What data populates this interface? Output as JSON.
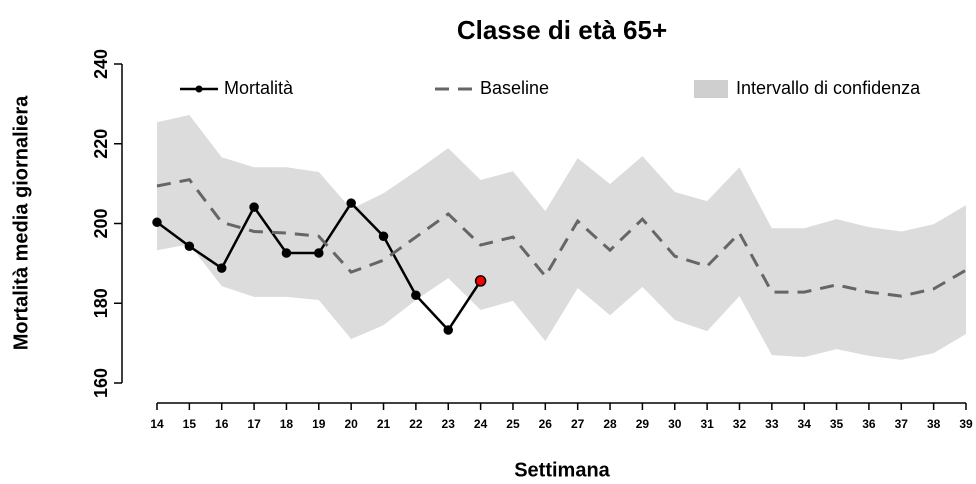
{
  "chart_data": {
    "type": "line",
    "title": "Classe di età 65+",
    "x_label": "Settimana",
    "y_label": "Mortalità media giornaliera",
    "x": [
      14,
      15,
      16,
      17,
      18,
      19,
      20,
      21,
      22,
      23,
      24,
      25,
      26,
      27,
      28,
      29,
      30,
      31,
      32,
      33,
      34,
      35,
      36,
      37,
      38,
      39
    ],
    "xlim": [
      14,
      39
    ],
    "xticks": [
      14,
      15,
      16,
      17,
      18,
      19,
      20,
      21,
      22,
      23,
      24,
      25,
      26,
      27,
      28,
      29,
      30,
      31,
      32,
      33,
      34,
      35,
      36,
      37,
      38,
      39
    ],
    "ylim": [
      160,
      240
    ],
    "yticks": [
      160,
      180,
      200,
      220,
      240
    ],
    "legend": "top",
    "band": {
      "name": "Intervallo di confidenza",
      "color": "#dcdcdc",
      "upper": [
        225.4,
        227.2,
        216.6,
        214.1,
        214.1,
        212.9,
        203.6,
        207.6,
        213.1,
        218.9,
        210.9,
        213.1,
        203.1,
        216.4,
        209.9,
        216.9,
        207.9,
        205.6,
        214.1,
        198.8,
        198.8,
        201.1,
        199.1,
        198,
        199.8,
        204.6
      ],
      "lower": [
        193.3,
        194.8,
        184.3,
        181.6,
        181.6,
        180.8,
        171,
        174.5,
        180.8,
        186.3,
        178.3,
        180.6,
        170.5,
        183.8,
        177,
        184.1,
        175.8,
        173,
        181.8,
        167,
        166.5,
        168.5,
        166.8,
        165.8,
        167.5,
        172.3
      ]
    },
    "series": [
      {
        "name": "Mortalità",
        "color": "#000000",
        "dash": false,
        "markers": true,
        "last_point_color": "#ff0000",
        "values": [
          200.3,
          194.3,
          188.8,
          204.1,
          192.6,
          192.6,
          205.1,
          196.8,
          182,
          173.3,
          185.6,
          null,
          null,
          null,
          null,
          null,
          null,
          null,
          null,
          null,
          null,
          null,
          null,
          null,
          null,
          null
        ]
      },
      {
        "name": "Baseline",
        "color": "#666666",
        "dash": true,
        "markers": false,
        "values": [
          209.4,
          211,
          200.3,
          198,
          197.6,
          196.8,
          187.8,
          190.8,
          196.6,
          202.4,
          194.6,
          196.6,
          186.8,
          200.6,
          193.3,
          201.1,
          191.8,
          189.3,
          197.6,
          182.8,
          182.8,
          184.6,
          182.8,
          181.8,
          183.6,
          188.3
        ]
      }
    ]
  }
}
